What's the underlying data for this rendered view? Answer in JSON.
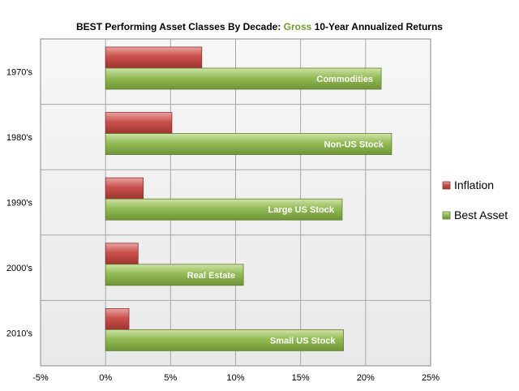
{
  "chart_data": {
    "type": "bar",
    "orientation": "horizontal",
    "title": "BEST Performing Asset Classes By Decade: Gross 10-Year Annualized Returns",
    "title_parts": {
      "prefix": "BEST Performing Asset Classes By Decade: ",
      "accent": "Gross",
      "suffix": " 10-Year Annualized Returns"
    },
    "categories": [
      "1970's",
      "1980's",
      "1990's",
      "2000's",
      "2010's"
    ],
    "series": [
      {
        "name": "Inflation",
        "color": "#c0504d",
        "values": [
          7.4,
          5.1,
          2.9,
          2.5,
          1.8
        ]
      },
      {
        "name": "Best Asset",
        "color": "#8fb852",
        "values": [
          21.2,
          22.0,
          18.2,
          10.6,
          18.3
        ]
      }
    ],
    "bar_labels": [
      "Commodities",
      "Non-US Stock",
      "Large US Stock",
      "Real Estate",
      "Small US Stock"
    ],
    "xlim": [
      -5,
      25
    ],
    "xticks": [
      -5,
      0,
      5,
      10,
      15,
      20,
      25
    ],
    "xtick_labels": [
      "-5%",
      "0%",
      "5%",
      "10%",
      "15%",
      "20%",
      "25%"
    ],
    "grid": true,
    "legend_position": "right"
  }
}
